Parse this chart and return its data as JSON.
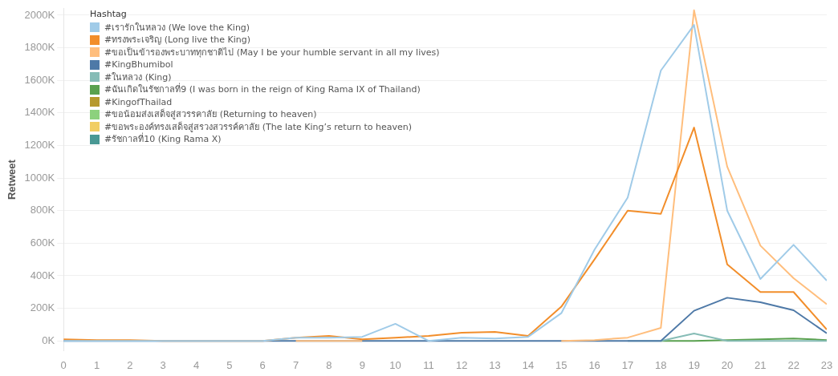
{
  "chart_data": {
    "type": "line",
    "ylabel": "Retweet",
    "legend_title": "Hashtag",
    "legend": "top left",
    "grid": "y",
    "marker": "none",
    "x": [
      0,
      1,
      2,
      3,
      4,
      5,
      6,
      7,
      8,
      9,
      10,
      11,
      12,
      13,
      14,
      15,
      16,
      17,
      18,
      19,
      20,
      21,
      22,
      23
    ],
    "xlim": [
      0,
      23
    ],
    "xticks": [
      0,
      1,
      2,
      3,
      4,
      5,
      6,
      7,
      8,
      9,
      10,
      11,
      12,
      13,
      14,
      15,
      16,
      17,
      18,
      19,
      20,
      21,
      22,
      23
    ],
    "ylim": [
      -60,
      2040
    ],
    "yticks": [
      {
        "value": 0,
        "label": "0K"
      },
      {
        "value": 200,
        "label": "200K"
      },
      {
        "value": 400,
        "label": "400K"
      },
      {
        "value": 600,
        "label": "600K"
      },
      {
        "value": 800,
        "label": "800K"
      },
      {
        "value": 1000,
        "label": "1000K"
      },
      {
        "value": 1200,
        "label": "1200K"
      },
      {
        "value": 1400,
        "label": "1400K"
      },
      {
        "value": 1600,
        "label": "1600K"
      },
      {
        "value": 1800,
        "label": "1800K"
      },
      {
        "value": 2000,
        "label": "2000K"
      }
    ],
    "series": [
      {
        "name": "#เรารักในหลวง (We love the King)",
        "color": "#a0cbe8",
        "values": [
          0,
          0,
          0,
          0,
          0,
          0,
          0,
          20,
          20,
          25,
          105,
          0,
          20,
          15,
          25,
          170,
          560,
          880,
          1660,
          1940,
          800,
          380,
          590,
          370
        ]
      },
      {
        "name": "#ทรงพระเจริญ (Long live the King)",
        "color": "#f28e2b",
        "values": [
          10,
          5,
          5,
          0,
          0,
          0,
          0,
          20,
          30,
          10,
          20,
          30,
          50,
          55,
          30,
          210,
          500,
          800,
          780,
          1310,
          470,
          300,
          300,
          70
        ]
      },
      {
        "name": "#ขอเป็นข้ารองพระบาททุกชาติไป (May I be your humble servant in all my lives)",
        "color": "#ffbe7d",
        "values": [
          null,
          null,
          null,
          null,
          null,
          null,
          null,
          0,
          0,
          0,
          null,
          null,
          null,
          null,
          null,
          0,
          5,
          20,
          80,
          2030,
          1070,
          585,
          385,
          225
        ]
      },
      {
        "name": "#KingBhumibol",
        "color": "#4e79a7",
        "values": [
          0,
          0,
          0,
          0,
          0,
          0,
          0,
          0,
          0,
          0,
          0,
          0,
          0,
          0,
          0,
          0,
          0,
          0,
          0,
          185,
          265,
          237,
          188,
          47
        ]
      },
      {
        "name": "#ในหลวง (King)",
        "color": "#86bcb6",
        "values": [
          null,
          null,
          null,
          null,
          null,
          null,
          null,
          null,
          null,
          null,
          null,
          null,
          null,
          null,
          null,
          null,
          null,
          0,
          0,
          45,
          0,
          0,
          0,
          0
        ]
      },
      {
        "name": "#ฉันเกิดในรัชกาลที่9 (I was born in the reign of King Rama IX of Thailand)",
        "color": "#59a14f",
        "values": [
          null,
          null,
          null,
          null,
          null,
          null,
          null,
          null,
          null,
          null,
          null,
          null,
          null,
          null,
          null,
          null,
          null,
          null,
          0,
          0,
          5,
          10,
          15,
          5
        ]
      },
      {
        "name": "#KingofThailad",
        "color": "#b6992d",
        "values": [
          null,
          null,
          null,
          null,
          null,
          null,
          null,
          null,
          null,
          null,
          null,
          null,
          null,
          null,
          null,
          null,
          null,
          null,
          null,
          null,
          null,
          null,
          null,
          null
        ]
      },
      {
        "name": "#ขอน้อมส่งเสด็จสู่สวรรคาลัย (Returning to heaven)",
        "color": "#8cd17d",
        "values": [
          null,
          null,
          null,
          null,
          null,
          null,
          null,
          null,
          null,
          null,
          null,
          null,
          null,
          null,
          null,
          null,
          null,
          null,
          null,
          null,
          null,
          null,
          null,
          null
        ]
      },
      {
        "name": "#ขอพระองค์ทรงเสด็จสู่สรวงสวรรค์คาลัย (The late King’s return to heaven)",
        "color": "#f1ce63",
        "values": [
          null,
          null,
          null,
          null,
          null,
          null,
          null,
          null,
          null,
          null,
          null,
          null,
          null,
          null,
          null,
          null,
          null,
          null,
          null,
          null,
          null,
          null,
          null,
          null
        ]
      },
      {
        "name": "#รัชกาลที่10 (King Rama X)",
        "color": "#499894",
        "values": [
          null,
          null,
          null,
          null,
          null,
          null,
          null,
          null,
          null,
          null,
          null,
          null,
          null,
          null,
          null,
          null,
          null,
          null,
          null,
          null,
          null,
          null,
          null,
          null
        ]
      }
    ]
  }
}
